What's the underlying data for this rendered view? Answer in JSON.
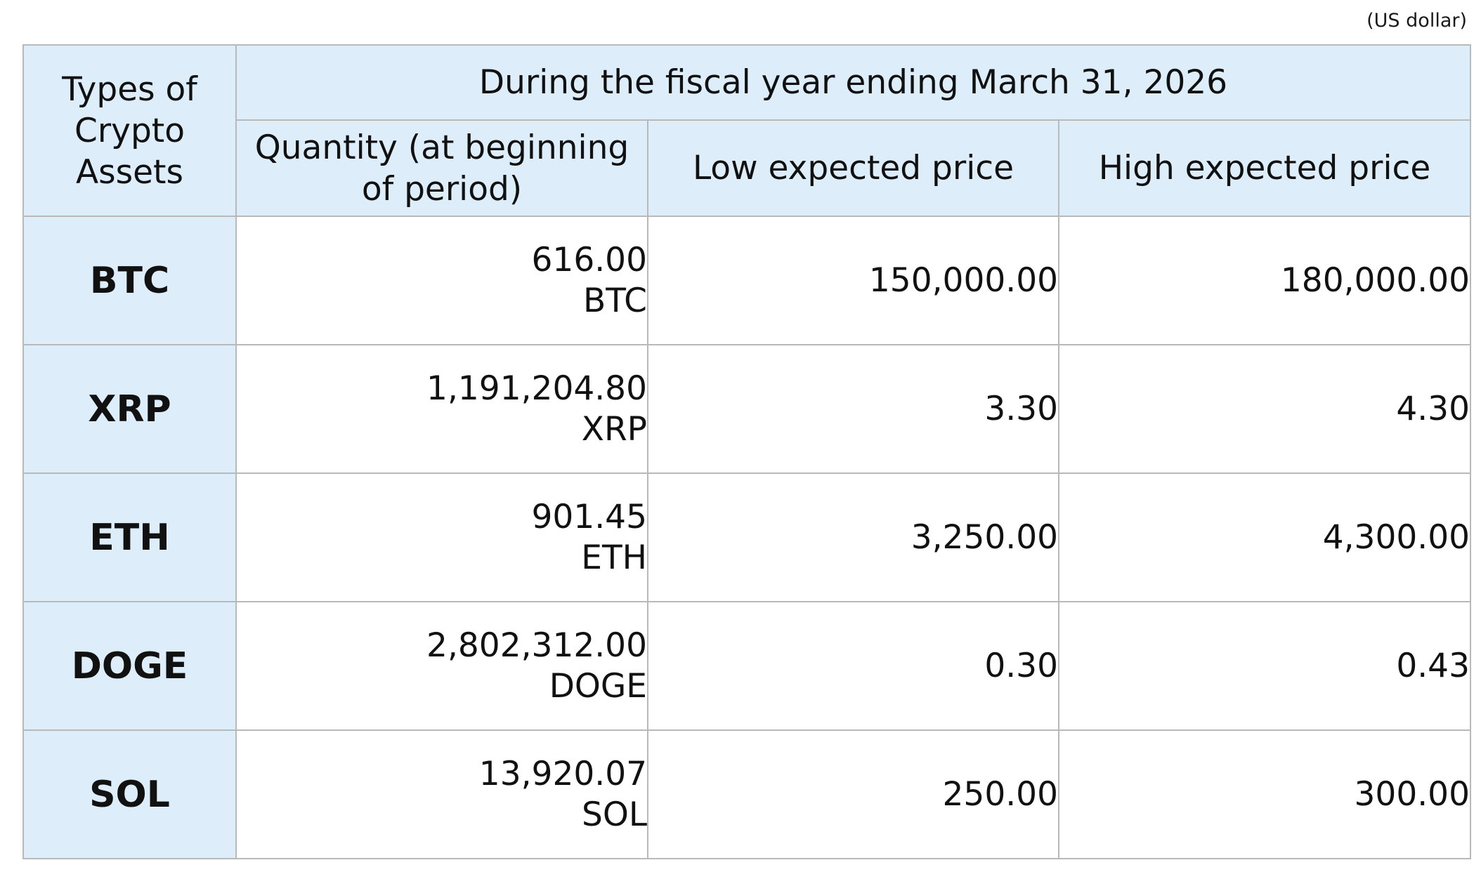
{
  "unit_note": "(US dollar)",
  "header": {
    "asset_type": "Types of Crypto Assets",
    "period": "During the fiscal year ending March 31, 2026",
    "quantity": "Quantity (at beginning of period)",
    "low_price": "Low expected price",
    "high_price": "High expected price"
  },
  "rows": [
    {
      "asset": "BTC",
      "quantity": "616.00",
      "quantity_unit": "BTC",
      "low": "150,000.00",
      "high": "180,000.00"
    },
    {
      "asset": "XRP",
      "quantity": "1,191,204.80",
      "quantity_unit": "XRP",
      "low": "3.30",
      "high": "4.30"
    },
    {
      "asset": "ETH",
      "quantity": "901.45",
      "quantity_unit": "ETH",
      "low": "3,250.00",
      "high": "4,300.00"
    },
    {
      "asset": "DOGE",
      "quantity": "2,802,312.00",
      "quantity_unit": "DOGE",
      "low": "0.30",
      "high": "0.43"
    },
    {
      "asset": "SOL",
      "quantity": "13,920.07",
      "quantity_unit": "SOL",
      "low": "250.00",
      "high": "300.00"
    }
  ]
}
